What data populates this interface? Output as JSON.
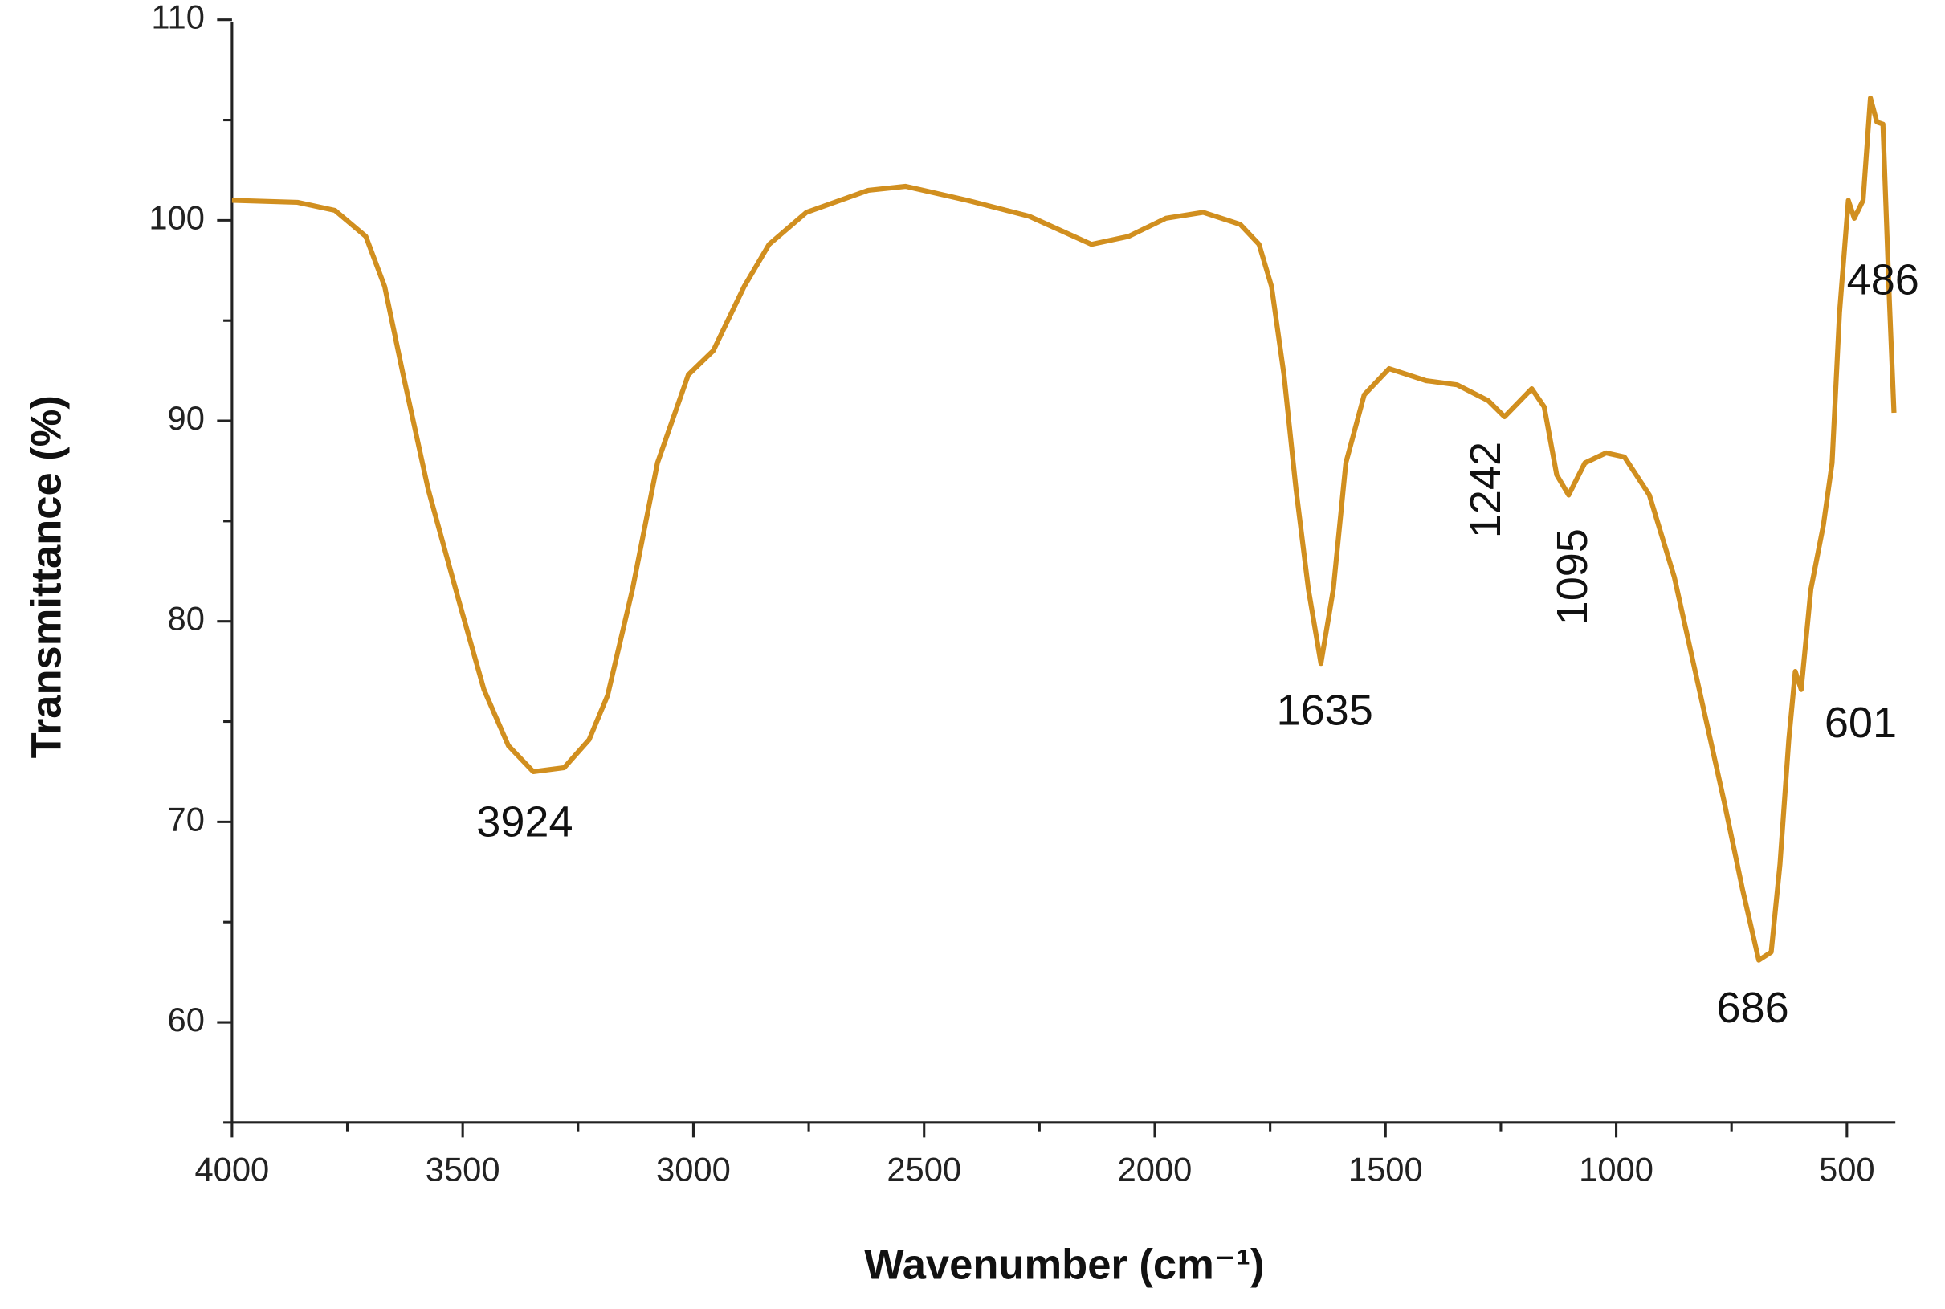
{
  "chart_data": {
    "type": "line",
    "xlabel": "Wavenumber (cm⁻¹)",
    "ylabel": "Transmittance (%)",
    "xlim": [
      4000,
      395
    ],
    "ylim": [
      55,
      110
    ],
    "xticks": [
      4000,
      3500,
      3000,
      2500,
      2000,
      1500,
      1000,
      500
    ],
    "xminor_ticks": [
      3750,
      3250,
      2750,
      2250,
      1750,
      1250,
      750
    ],
    "yticks": [
      60,
      70,
      80,
      90,
      100,
      110
    ],
    "yminor_ticks": [
      55,
      65,
      75,
      85,
      95,
      105
    ],
    "series": [
      {
        "color": "#d18f1f",
        "x": [
          4000,
          3858,
          3777,
          3710,
          3669,
          3629,
          3575,
          3508,
          3454,
          3401,
          3347,
          3280,
          3226,
          3186,
          3132,
          3078,
          3011,
          2957,
          2890,
          2836,
          2755,
          2621,
          2540,
          2406,
          2272,
          2137,
          2057,
          1976,
          1895,
          1815,
          1774,
          1747,
          1720,
          1694,
          1667,
          1640,
          1613,
          1586,
          1546,
          1492,
          1412,
          1345,
          1277,
          1242,
          1183,
          1156,
          1129,
          1103,
          1068,
          1022,
          982,
          928,
          874,
          820,
          766,
          726,
          691,
          664,
          645,
          626,
          612,
          599,
          578,
          551,
          532,
          516,
          497,
          484,
          465,
          449,
          435,
          422,
          408,
          398
        ],
        "values": [
          101.0,
          100.9,
          100.5,
          99.2,
          96.7,
          92.3,
          86.6,
          81.0,
          76.6,
          73.8,
          72.5,
          72.7,
          74.1,
          76.3,
          81.6,
          87.9,
          92.3,
          93.5,
          96.7,
          98.8,
          100.4,
          101.5,
          101.7,
          101.0,
          100.2,
          98.8,
          99.2,
          100.1,
          100.4,
          99.8,
          98.8,
          96.7,
          92.3,
          86.6,
          81.6,
          77.9,
          81.6,
          87.9,
          91.3,
          92.6,
          92.0,
          91.8,
          91.0,
          90.2,
          91.6,
          90.7,
          87.3,
          86.3,
          87.9,
          88.4,
          88.2,
          86.3,
          82.2,
          76.6,
          71.0,
          66.6,
          63.1,
          63.5,
          67.9,
          74.1,
          77.5,
          76.6,
          81.6,
          84.8,
          87.9,
          95.4,
          101.0,
          100.1,
          101.0,
          106.1,
          104.9,
          104.8,
          96.0,
          90.4
        ]
      }
    ],
    "annotations": [
      "3924",
      "1635",
      "1242",
      "1095",
      "686",
      "601",
      "486"
    ]
  }
}
